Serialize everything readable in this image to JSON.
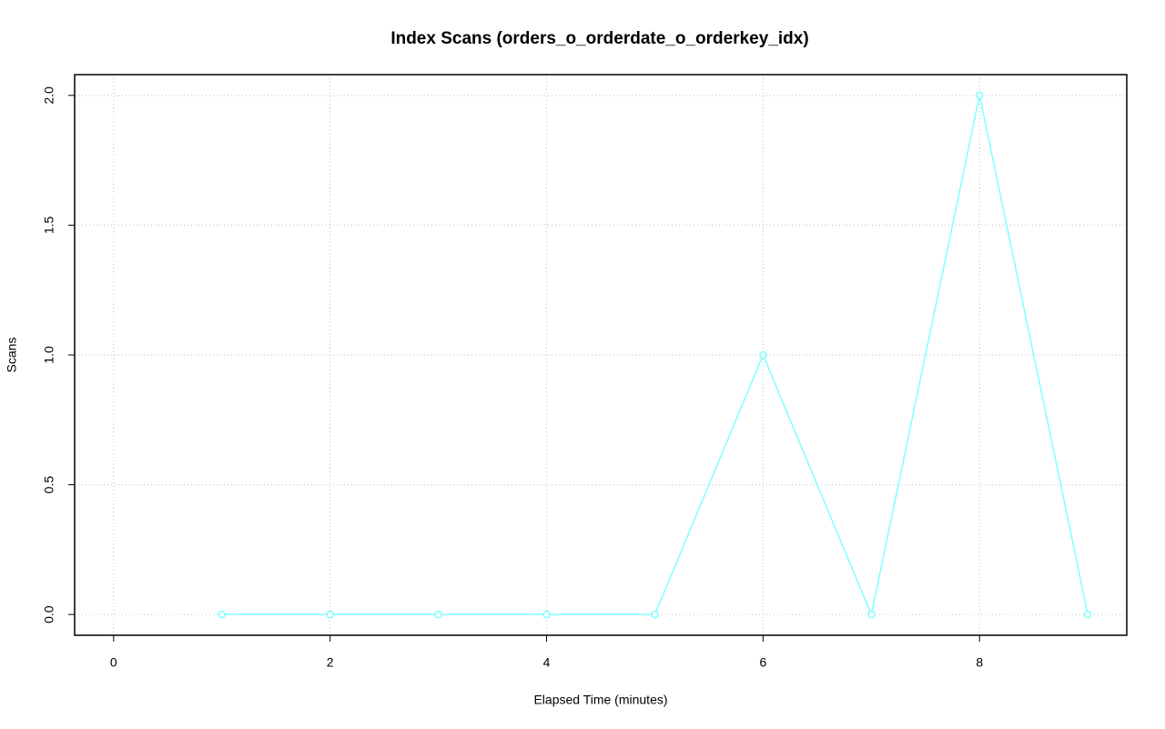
{
  "chart_data": {
    "type": "line",
    "title": "Index Scans (orders_o_orderdate_o_orderkey_idx)",
    "x_label": "Elapsed Time (minutes)",
    "y_label": "Scans",
    "x": [
      1,
      2,
      3,
      4,
      5,
      6,
      7,
      8,
      9
    ],
    "series": [
      {
        "color": "#7fffff",
        "values": [
          0,
          0,
          0,
          0,
          0,
          1,
          0,
          2,
          0
        ]
      }
    ],
    "xlim": [
      -0.36,
      9.36
    ],
    "ylim": [
      -0.08,
      2.08
    ],
    "xticks": [
      0,
      2,
      4,
      6,
      8
    ],
    "yticks": [
      {
        "value": 0,
        "label": "0.0"
      },
      {
        "value": 0.5,
        "label": "0.5"
      },
      {
        "value": 1,
        "label": "1.0"
      },
      {
        "value": 1.5,
        "label": "1.5"
      },
      {
        "value": 2,
        "label": "2.0"
      }
    ],
    "grid": true
  }
}
